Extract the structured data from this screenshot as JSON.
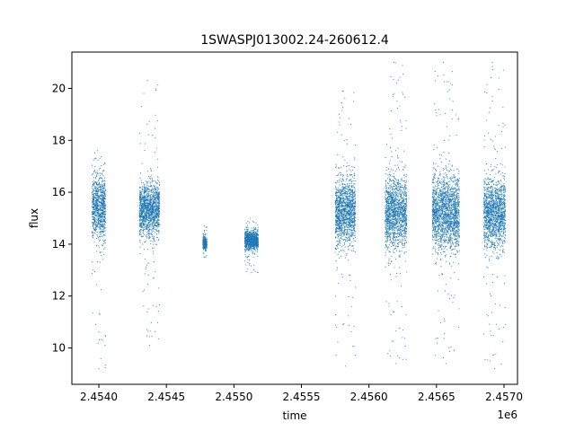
{
  "chart_data": {
    "type": "scatter",
    "title": "1SWASPJ013002.24-260612.4",
    "xlabel": "time",
    "ylabel": "flux",
    "x_offset_label": "1e6",
    "xlim": [
      2.4538,
      2.4571
    ],
    "ylim": [
      8.6,
      21.4
    ],
    "x_ticks": [
      2.454,
      2.4545,
      2.455,
      2.4555,
      2.456,
      2.4565,
      2.457
    ],
    "x_tick_labels": [
      "2.4540",
      "2.4545",
      "2.4550",
      "2.4555",
      "2.4560",
      "2.4565",
      "2.4570"
    ],
    "y_ticks": [
      10,
      12,
      14,
      16,
      18,
      20
    ],
    "y_tick_labels": [
      "10",
      "12",
      "14",
      "16",
      "18",
      "20"
    ],
    "grid": false,
    "legend": "none",
    "marker_color": "#1f77b4",
    "series": [
      {
        "values_summary": [
          {
            "x_range": [
              2.45395,
              2.45405
            ],
            "flux_core": [
              14.2,
              16.6
            ],
            "flux_extent": [
              9.2,
              17.6
            ]
          },
          {
            "x_range": [
              2.4543,
              2.45445
            ],
            "flux_core": [
              14.3,
              16.3
            ],
            "flux_extent": [
              10.1,
              20.3
            ]
          },
          {
            "x_range": [
              2.45477,
              2.4548
            ],
            "flux_core": [
              13.8,
              14.3
            ],
            "flux_extent": [
              13.5,
              14.7
            ]
          },
          {
            "x_range": [
              2.45508,
              2.45518
            ],
            "flux_core": [
              13.8,
              14.5
            ],
            "flux_extent": [
              12.9,
              15.0
            ]
          },
          {
            "x_range": [
              2.45575,
              2.4559
            ],
            "flux_core": [
              14.0,
              16.5
            ],
            "flux_extent": [
              9.3,
              19.9
            ]
          },
          {
            "x_range": [
              2.45612,
              2.45628
            ],
            "flux_core": [
              13.8,
              16.6
            ],
            "flux_extent": [
              9.4,
              21.0
            ]
          },
          {
            "x_range": [
              2.45647,
              2.45667
            ],
            "flux_core": [
              13.8,
              16.6
            ],
            "flux_extent": [
              9.4,
              21.0
            ]
          },
          {
            "x_range": [
              2.45685,
              2.45701
            ],
            "flux_core": [
              13.9,
              16.5
            ],
            "flux_extent": [
              9.2,
              21.0
            ]
          }
        ]
      }
    ]
  }
}
